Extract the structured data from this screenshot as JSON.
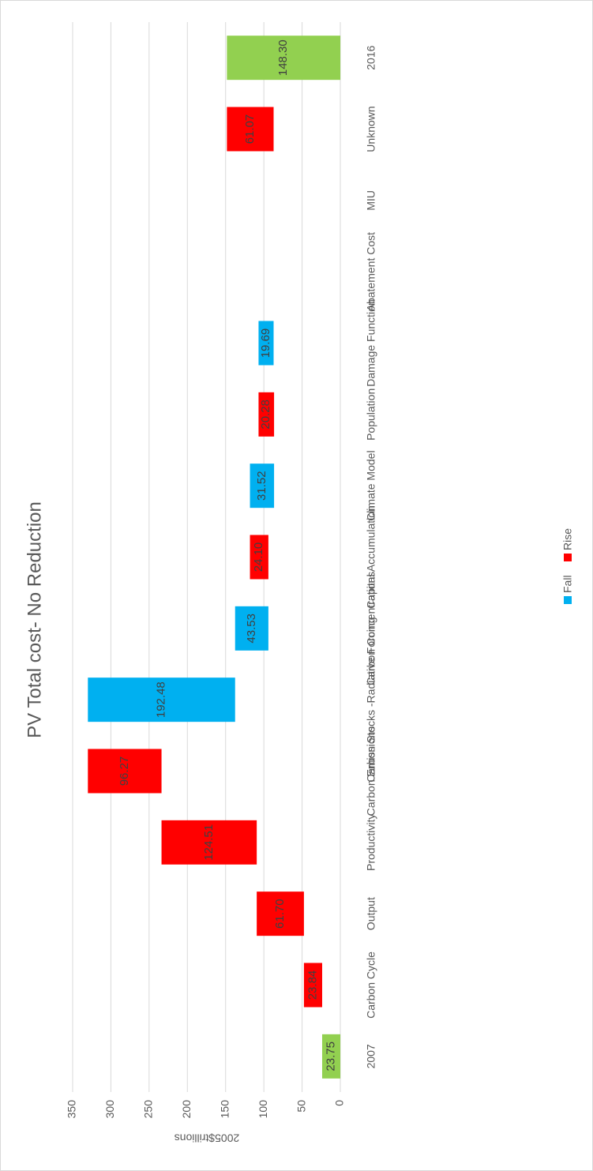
{
  "chart_data": {
    "type": "waterfall",
    "title": "PV  Total cost- No Reduction",
    "y_label": "2005$trillions",
    "categories": [
      "2007",
      "Carbon Cycle",
      "Output",
      "Productivity",
      "Carbon Emissions",
      "Carbon Stocks -Radiative Forcing",
      "Carbon Concentrations",
      "Capital Accumulation",
      "Climate Model",
      "Population",
      "Damage Function",
      "Abatement Cost",
      "MIU",
      "Unknown",
      "2016"
    ],
    "totals": {
      "color": "#92d050",
      "values": [
        23.75,
        null,
        null,
        null,
        null,
        null,
        null,
        null,
        null,
        null,
        null,
        null,
        null,
        null,
        148.3
      ]
    },
    "series": [
      {
        "name": "Fall",
        "color": "#00b0f0",
        "values": [
          null,
          null,
          null,
          null,
          null,
          192.48,
          43.53,
          null,
          31.52,
          null,
          19.69,
          null,
          null,
          null,
          null
        ]
      },
      {
        "name": "Rise",
        "color": "#ff0000",
        "values": [
          null,
          23.84,
          61.7,
          124.51,
          96.27,
          null,
          null,
          24.1,
          null,
          20.28,
          null,
          null,
          null,
          61.07,
          null
        ]
      }
    ],
    "value_labels": [
      "23.75",
      "23.84",
      "61.70",
      "124.51",
      "96.27",
      "192.48",
      "43.53",
      "24.10",
      "31.52",
      "20.28",
      "19.69",
      null,
      null,
      "61.07",
      "148.30"
    ],
    "ylim": [
      0,
      350
    ],
    "yticks": [
      0,
      50,
      100,
      150,
      200,
      250,
      300,
      350
    ],
    "grid": true,
    "legend": "bottom"
  }
}
